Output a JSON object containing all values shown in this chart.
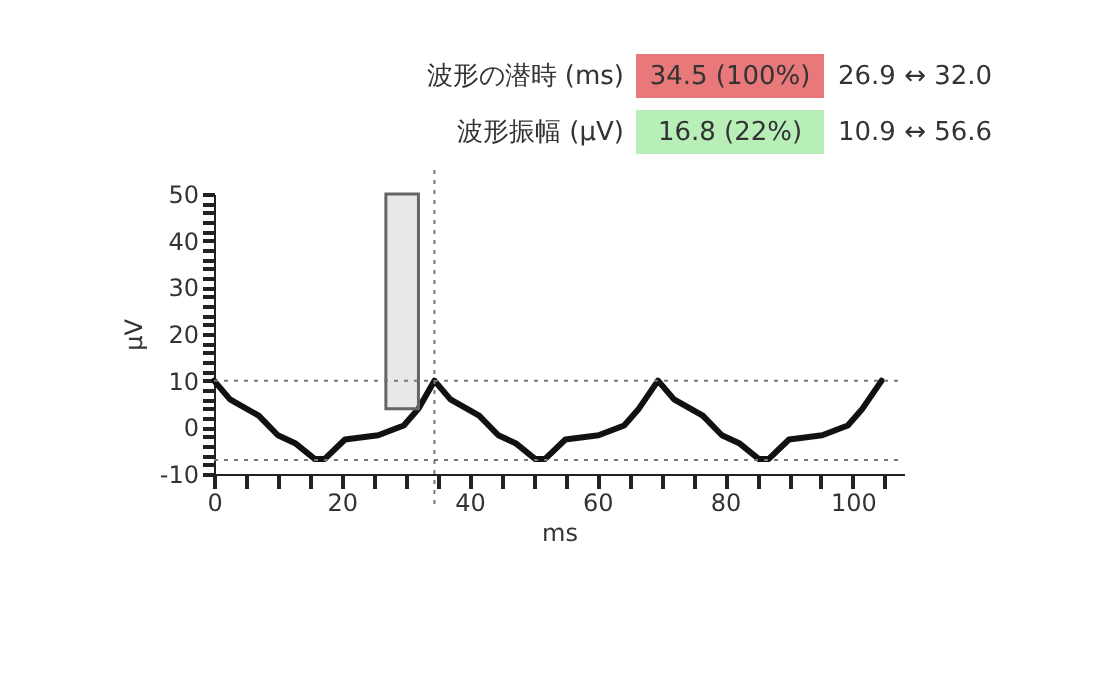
{
  "chart_data": {
    "type": "line",
    "xlabel": "ms",
    "ylabel": "µV",
    "xlim": [
      0,
      108
    ],
    "ylim": [
      -10,
      50
    ],
    "xticks": [
      0,
      {
        "value": 5,
        "label": null
      },
      {
        "value": 10,
        "label": null
      },
      {
        "value": 15,
        "label": null
      },
      20,
      {
        "value": 25,
        "label": null
      },
      {
        "value": 30,
        "label": null
      },
      {
        "value": 35,
        "label": null
      },
      40,
      {
        "value": 45,
        "label": null
      },
      {
        "value": 50,
        "label": null
      },
      {
        "value": 55,
        "label": null
      },
      60,
      {
        "value": 65,
        "label": null
      },
      {
        "value": 70,
        "label": null
      },
      {
        "value": 75,
        "label": null
      },
      80,
      {
        "value": 85,
        "label": null
      },
      {
        "value": 90,
        "label": null
      },
      {
        "value": 95,
        "label": null
      },
      100,
      {
        "value": 105,
        "label": null
      }
    ],
    "yticks": [
      -10,
      {
        "value": -8,
        "label": null
      },
      {
        "value": -6,
        "label": null
      },
      {
        "value": -4,
        "label": null
      },
      {
        "value": -2,
        "label": null
      },
      0,
      {
        "value": 2,
        "label": null
      },
      {
        "value": 4,
        "label": null
      },
      {
        "value": 6,
        "label": null
      },
      {
        "value": 8,
        "label": null
      },
      10,
      {
        "value": 12,
        "label": null
      },
      {
        "value": 14,
        "label": null
      },
      {
        "value": 16,
        "label": null
      },
      {
        "value": 18,
        "label": null
      },
      20,
      {
        "value": 22,
        "label": null
      },
      {
        "value": 24,
        "label": null
      },
      {
        "value": 26,
        "label": null
      },
      {
        "value": 28,
        "label": null
      },
      30,
      {
        "value": 32,
        "label": null
      },
      {
        "value": 34,
        "label": null
      },
      {
        "value": 36,
        "label": null
      },
      {
        "value": 38,
        "label": null
      },
      40,
      {
        "value": 42,
        "label": null
      },
      {
        "value": 44,
        "label": null
      },
      {
        "value": 46,
        "label": null
      },
      {
        "value": 48,
        "label": null
      },
      50
    ],
    "grid": false,
    "marker": "none",
    "line_style": "solid",
    "series": [
      {
        "color": "#111111",
        "x": [
          0,
          2.5,
          7,
          10,
          12.7,
          15.8,
          17.3,
          20.5,
          25.7,
          29.7,
          32,
          34.5,
          37,
          41.5,
          44.5,
          47.2,
          50.3,
          51.8,
          55,
          60.2,
          64.2,
          66.5,
          69.5,
          72,
          76.5,
          79.5,
          82.2,
          85.3,
          86.8,
          90,
          95.2,
          99.2,
          101.5,
          104.5
        ],
        "values": [
          10,
          6,
          2.5,
          -1.7,
          -3.4,
          -6.8,
          -6.8,
          -2.6,
          -1.7,
          0.4,
          4,
          10,
          6,
          2.5,
          -1.7,
          -3.4,
          -6.8,
          -6.8,
          -2.6,
          -1.7,
          0.4,
          4,
          10,
          6,
          2.5,
          -1.7,
          -3.4,
          -6.8,
          -6.8,
          -2.6,
          -1.7,
          0.4,
          4,
          10
        ]
      },
      {
        "type": "area",
        "color": "#666666",
        "x": [
          26.9,
          32.0
        ],
        "values": [
          null,
          null
        ],
        "lower": [
          4,
          4
        ],
        "upper": [
          50,
          50
        ]
      }
    ],
    "ref_lines": [
      {
        "axis": "y",
        "value": 10,
        "color": "#777777",
        "line_style": "dotted"
      },
      {
        "axis": "y",
        "value": -7,
        "color": "#777777",
        "line_style": "dotted"
      },
      {
        "axis": "x",
        "value": 34.5,
        "color": "#777777",
        "line_style": "dotted"
      }
    ],
    "annotations": [
      "波形の潜時 (ms)",
      "34.5 (100%)",
      "26.9 ↔ 32.0",
      "波形振幅 (µV)",
      "16.8 (22%)",
      "10.9 ↔ 56.6"
    ]
  }
}
